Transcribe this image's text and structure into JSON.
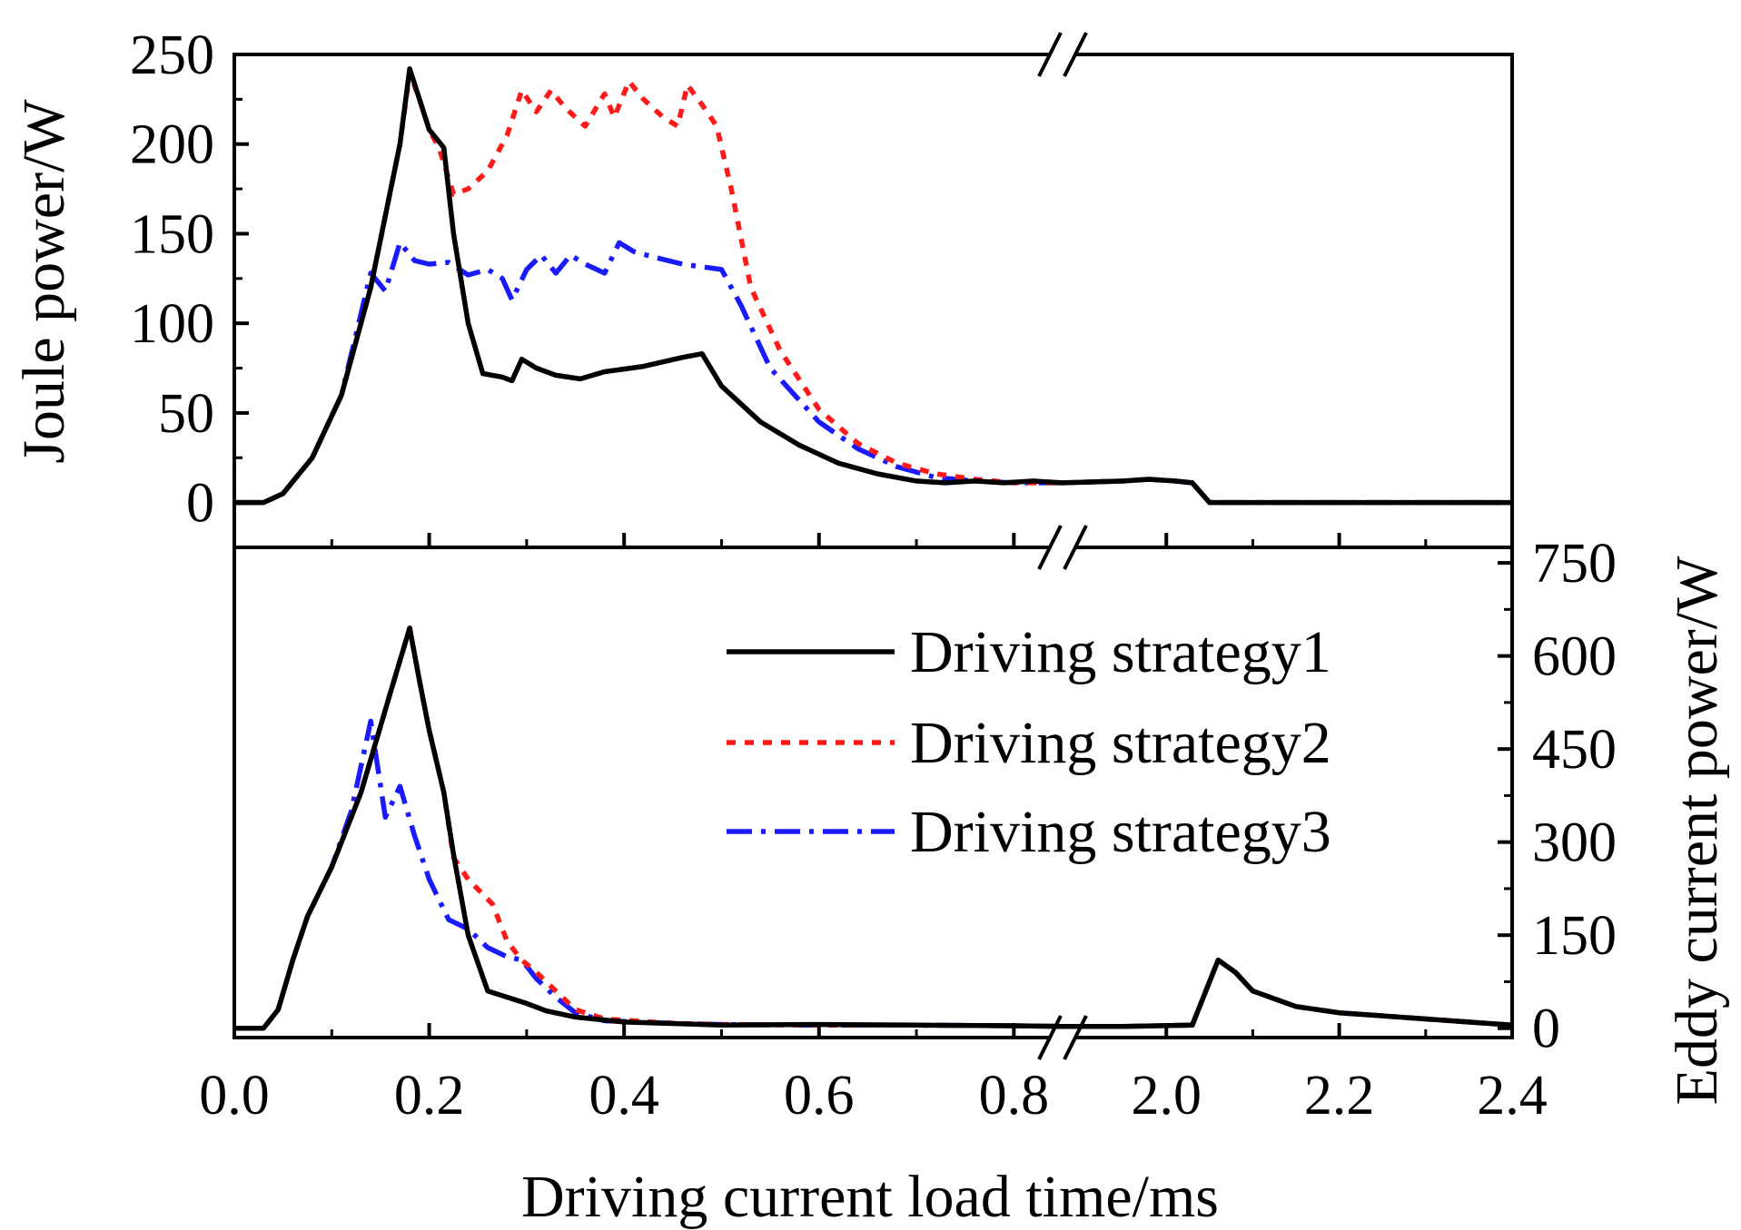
{
  "chart_data": {
    "type": "line",
    "title": "",
    "xlabel": "Driving current load time/ms",
    "x_segments": [
      {
        "range": [
          0.0,
          0.85
        ],
        "ticks": [
          "0.0",
          "0.2",
          "0.4",
          "0.6",
          "0.8"
        ],
        "tick_values": [
          0.0,
          0.2,
          0.4,
          0.6,
          0.8
        ]
      },
      {
        "range": [
          1.88,
          2.4
        ],
        "ticks": [
          "2.0",
          "2.2",
          "2.4"
        ],
        "tick_values": [
          2.0,
          2.2,
          2.4
        ]
      }
    ],
    "panels": [
      {
        "id": "joule",
        "ylabel": "Joule power/W",
        "ylim": [
          -25,
          250
        ],
        "yticks": [
          "0",
          "50",
          "100",
          "150",
          "200",
          "250"
        ],
        "ytick_values": [
          0,
          50,
          100,
          150,
          200,
          250
        ],
        "series": [
          {
            "name": "Driving strategy1",
            "color": "#000000",
            "dash": "solid",
            "points": [
              [
                0,
                0
              ],
              [
                0.03,
                0
              ],
              [
                0.05,
                5
              ],
              [
                0.08,
                25
              ],
              [
                0.11,
                60
              ],
              [
                0.14,
                120
              ],
              [
                0.17,
                200
              ],
              [
                0.18,
                242
              ],
              [
                0.19,
                225
              ],
              [
                0.2,
                208
              ],
              [
                0.215,
                198
              ],
              [
                0.225,
                150
              ],
              [
                0.24,
                100
              ],
              [
                0.255,
                72
              ],
              [
                0.275,
                70
              ],
              [
                0.285,
                68
              ],
              [
                0.295,
                80
              ],
              [
                0.31,
                75
              ],
              [
                0.33,
                71
              ],
              [
                0.355,
                69
              ],
              [
                0.38,
                73
              ],
              [
                0.42,
                76
              ],
              [
                0.46,
                81
              ],
              [
                0.48,
                83
              ],
              [
                0.5,
                65
              ],
              [
                0.54,
                45
              ],
              [
                0.58,
                32
              ],
              [
                0.62,
                22
              ],
              [
                0.66,
                16
              ],
              [
                0.7,
                12
              ],
              [
                0.73,
                11
              ],
              [
                0.76,
                12
              ],
              [
                0.79,
                11
              ],
              [
                0.82,
                12
              ],
              [
                0.85,
                11
              ],
              [
                1.95,
                12
              ],
              [
                1.98,
                13
              ],
              [
                2.01,
                12
              ],
              [
                2.03,
                11
              ],
              [
                2.05,
                0
              ],
              [
                2.4,
                0
              ]
            ]
          },
          {
            "name": "Driving strategy2",
            "color": "#ff1a1a",
            "dash": "dot",
            "points": [
              [
                0,
                0
              ],
              [
                0.03,
                0
              ],
              [
                0.05,
                5
              ],
              [
                0.08,
                25
              ],
              [
                0.11,
                60
              ],
              [
                0.14,
                120
              ],
              [
                0.17,
                200
              ],
              [
                0.18,
                240
              ],
              [
                0.19,
                225
              ],
              [
                0.2,
                208
              ],
              [
                0.21,
                198
              ],
              [
                0.225,
                172
              ],
              [
                0.24,
                175
              ],
              [
                0.26,
                185
              ],
              [
                0.28,
                205
              ],
              [
                0.295,
                230
              ],
              [
                0.31,
                218
              ],
              [
                0.325,
                230
              ],
              [
                0.34,
                220
              ],
              [
                0.36,
                210
              ],
              [
                0.38,
                228
              ],
              [
                0.39,
                215
              ],
              [
                0.405,
                235
              ],
              [
                0.42,
                225
              ],
              [
                0.44,
                215
              ],
              [
                0.455,
                210
              ],
              [
                0.465,
                233
              ],
              [
                0.48,
                222
              ],
              [
                0.495,
                210
              ],
              [
                0.51,
                175
              ],
              [
                0.53,
                120
              ],
              [
                0.56,
                85
              ],
              [
                0.6,
                52
              ],
              [
                0.64,
                33
              ],
              [
                0.68,
                22
              ],
              [
                0.72,
                16
              ],
              [
                0.76,
                13
              ],
              [
                0.8,
                11
              ],
              [
                0.85,
                11
              ],
              [
                1.95,
                12
              ],
              [
                1.98,
                13
              ],
              [
                2.01,
                12
              ],
              [
                2.03,
                11
              ],
              [
                2.05,
                0
              ],
              [
                2.4,
                0
              ]
            ]
          },
          {
            "name": "Driving strategy3",
            "color": "#1a1aff",
            "dash": "dashdot",
            "points": [
              [
                0,
                0
              ],
              [
                0.03,
                0
              ],
              [
                0.05,
                5
              ],
              [
                0.08,
                25
              ],
              [
                0.11,
                60
              ],
              [
                0.14,
                128
              ],
              [
                0.155,
                118
              ],
              [
                0.17,
                145
              ],
              [
                0.185,
                135
              ],
              [
                0.2,
                133
              ],
              [
                0.22,
                134
              ],
              [
                0.24,
                127
              ],
              [
                0.26,
                130
              ],
              [
                0.275,
                125
              ],
              [
                0.285,
                113
              ],
              [
                0.3,
                130
              ],
              [
                0.315,
                138
              ],
              [
                0.33,
                128
              ],
              [
                0.345,
                138
              ],
              [
                0.36,
                133
              ],
              [
                0.38,
                128
              ],
              [
                0.395,
                145
              ],
              [
                0.41,
                140
              ],
              [
                0.43,
                137
              ],
              [
                0.46,
                133
              ],
              [
                0.5,
                130
              ],
              [
                0.52,
                110
              ],
              [
                0.55,
                75
              ],
              [
                0.6,
                45
              ],
              [
                0.64,
                30
              ],
              [
                0.68,
                20
              ],
              [
                0.72,
                14
              ],
              [
                0.76,
                12
              ],
              [
                0.8,
                11
              ],
              [
                0.85,
                11
              ],
              [
                1.95,
                12
              ],
              [
                1.98,
                13
              ],
              [
                2.01,
                12
              ],
              [
                2.03,
                11
              ],
              [
                2.05,
                0
              ],
              [
                2.4,
                0
              ]
            ]
          }
        ]
      },
      {
        "id": "eddy",
        "ylabel": "Eddy current power/W",
        "ylim": [
          -15,
          775
        ],
        "yticks": [
          "0",
          "150",
          "300",
          "450",
          "600",
          "750"
        ],
        "ytick_values": [
          0,
          150,
          300,
          450,
          600,
          750
        ],
        "series": [
          {
            "name": "Driving strategy1",
            "color": "#000000",
            "dash": "solid",
            "points": [
              [
                0,
                0
              ],
              [
                0.03,
                0
              ],
              [
                0.045,
                30
              ],
              [
                0.06,
                110
              ],
              [
                0.075,
                180
              ],
              [
                0.1,
                260
              ],
              [
                0.13,
                380
              ],
              [
                0.16,
                540
              ],
              [
                0.18,
                645
              ],
              [
                0.19,
                560
              ],
              [
                0.2,
                480
              ],
              [
                0.215,
                380
              ],
              [
                0.225,
                280
              ],
              [
                0.24,
                150
              ],
              [
                0.26,
                60
              ],
              [
                0.29,
                45
              ],
              [
                0.3,
                40
              ],
              [
                0.32,
                28
              ],
              [
                0.35,
                18
              ],
              [
                0.4,
                10
              ],
              [
                0.5,
                5
              ],
              [
                0.6,
                6
              ],
              [
                0.7,
                5
              ],
              [
                0.8,
                4
              ],
              [
                0.85,
                3
              ],
              [
                1.95,
                3
              ],
              [
                2.03,
                5
              ],
              [
                2.06,
                110
              ],
              [
                2.08,
                90
              ],
              [
                2.1,
                60
              ],
              [
                2.15,
                35
              ],
              [
                2.2,
                25
              ],
              [
                2.3,
                15
              ],
              [
                2.4,
                5
              ]
            ]
          },
          {
            "name": "Driving strategy2",
            "color": "#ff1a1a",
            "dash": "dot",
            "points": [
              [
                0,
                0
              ],
              [
                0.03,
                0
              ],
              [
                0.045,
                30
              ],
              [
                0.06,
                110
              ],
              [
                0.075,
                180
              ],
              [
                0.1,
                260
              ],
              [
                0.13,
                380
              ],
              [
                0.16,
                540
              ],
              [
                0.18,
                645
              ],
              [
                0.19,
                560
              ],
              [
                0.2,
                480
              ],
              [
                0.215,
                380
              ],
              [
                0.225,
                275
              ],
              [
                0.24,
                240
              ],
              [
                0.265,
                200
              ],
              [
                0.28,
                140
              ],
              [
                0.295,
                110
              ],
              [
                0.31,
                90
              ],
              [
                0.33,
                60
              ],
              [
                0.35,
                30
              ],
              [
                0.38,
                15
              ],
              [
                0.45,
                8
              ],
              [
                0.5,
                6
              ],
              [
                0.6,
                5
              ],
              [
                0.7,
                5
              ],
              [
                0.8,
                4
              ],
              [
                0.85,
                3
              ],
              [
                1.95,
                3
              ],
              [
                2.03,
                5
              ],
              [
                2.06,
                110
              ],
              [
                2.08,
                90
              ],
              [
                2.1,
                60
              ],
              [
                2.15,
                35
              ],
              [
                2.2,
                25
              ],
              [
                2.3,
                15
              ],
              [
                2.4,
                5
              ]
            ]
          },
          {
            "name": "Driving strategy3",
            "color": "#1a1aff",
            "dash": "dashdot",
            "points": [
              [
                0,
                0
              ],
              [
                0.03,
                0
              ],
              [
                0.045,
                30
              ],
              [
                0.06,
                110
              ],
              [
                0.075,
                180
              ],
              [
                0.1,
                260
              ],
              [
                0.12,
                350
              ],
              [
                0.14,
                495
              ],
              [
                0.155,
                340
              ],
              [
                0.17,
                390
              ],
              [
                0.185,
                310
              ],
              [
                0.2,
                240
              ],
              [
                0.22,
                175
              ],
              [
                0.24,
                160
              ],
              [
                0.26,
                130
              ],
              [
                0.28,
                115
              ],
              [
                0.295,
                110
              ],
              [
                0.31,
                80
              ],
              [
                0.33,
                50
              ],
              [
                0.35,
                25
              ],
              [
                0.38,
                12
              ],
              [
                0.45,
                8
              ],
              [
                0.5,
                6
              ],
              [
                0.6,
                5
              ],
              [
                0.7,
                5
              ],
              [
                0.8,
                4
              ],
              [
                0.85,
                3
              ],
              [
                1.95,
                3
              ],
              [
                2.03,
                5
              ],
              [
                2.06,
                110
              ],
              [
                2.08,
                90
              ],
              [
                2.1,
                60
              ],
              [
                2.15,
                35
              ],
              [
                2.2,
                25
              ],
              [
                2.3,
                15
              ],
              [
                2.4,
                5
              ]
            ]
          }
        ]
      }
    ],
    "legend": {
      "placement": "bottom-panel top-right",
      "entries": [
        "Driving strategy1",
        "Driving strategy2",
        "Driving strategy3"
      ]
    }
  }
}
